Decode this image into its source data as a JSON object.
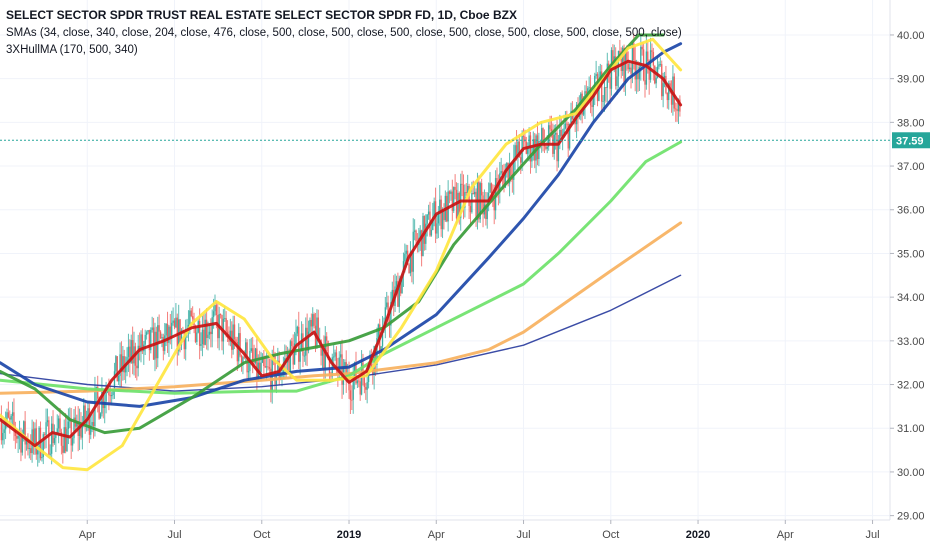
{
  "legend": {
    "title": "SELECT SECTOR SPDR TRUST REAL ESTATE SELECT SECTOR SPDR FD, 1D, Cboe BZX",
    "line1": "SMAs (34, close, 340, close, 204, close, 476, close, 500, close, 500, close, 500, close, 500, close, 500, close, 500, close, 500, close)",
    "line2": "3XHullMA (170, 500, 340)"
  },
  "price_label": {
    "value": "37.59",
    "color": "#26a69a"
  },
  "chart_data": {
    "type": "line",
    "title": "SELECT SECTOR SPDR TRUST REAL ESTATE SELECT SECTOR SPDR FD, 1D, Cboe BZX",
    "xlabel": "",
    "ylabel": "",
    "x_ticks": [
      {
        "label": "Apr",
        "x": 0.25,
        "bold": false
      },
      {
        "label": "Jul",
        "x": 0.5,
        "bold": false
      },
      {
        "label": "Oct",
        "x": 0.75,
        "bold": false
      },
      {
        "label": "2019",
        "x": 1.0,
        "bold": true
      },
      {
        "label": "Apr",
        "x": 1.25,
        "bold": false
      },
      {
        "label": "Jul",
        "x": 1.5,
        "bold": false
      },
      {
        "label": "Oct",
        "x": 1.75,
        "bold": false
      },
      {
        "label": "2020",
        "x": 2.0,
        "bold": true
      },
      {
        "label": "Apr",
        "x": 2.25,
        "bold": false
      },
      {
        "label": "Jul",
        "x": 2.5,
        "bold": false
      }
    ],
    "y_ticks": [
      "29.00",
      "30.00",
      "31.00",
      "32.00",
      "33.00",
      "34.00",
      "35.00",
      "36.00",
      "37.00",
      "38.00",
      "39.00",
      "40.00"
    ],
    "xlim": [
      0.0,
      2.55
    ],
    "ylim": [
      28.9,
      40.8
    ],
    "last_price": 37.59,
    "grid": true,
    "series": [
      {
        "color": "#2a3d9e",
        "width": 1.4,
        "points": [
          [
            0.0,
            32.25
          ],
          [
            0.25,
            32.0
          ],
          [
            0.5,
            31.85
          ],
          [
            0.75,
            31.95
          ],
          [
            1.0,
            32.15
          ],
          [
            1.25,
            32.45
          ],
          [
            1.5,
            32.9
          ],
          [
            1.75,
            33.7
          ],
          [
            1.95,
            34.5
          ]
        ]
      },
      {
        "color": "#f7b15e",
        "width": 3,
        "points": [
          [
            0.0,
            31.8
          ],
          [
            0.25,
            31.85
          ],
          [
            0.5,
            31.95
          ],
          [
            0.75,
            32.1
          ],
          [
            0.9,
            32.2
          ],
          [
            1.0,
            32.25
          ],
          [
            1.25,
            32.5
          ],
          [
            1.4,
            32.8
          ],
          [
            1.5,
            33.2
          ],
          [
            1.75,
            34.6
          ],
          [
            1.95,
            35.7
          ]
        ]
      },
      {
        "color": "#6ee26a",
        "width": 3,
        "points": [
          [
            0.0,
            32.1
          ],
          [
            0.25,
            31.9
          ],
          [
            0.5,
            31.8
          ],
          [
            0.75,
            31.85
          ],
          [
            0.85,
            31.85
          ],
          [
            1.0,
            32.2
          ],
          [
            1.1,
            32.7
          ],
          [
            1.25,
            33.3
          ],
          [
            1.5,
            34.3
          ],
          [
            1.6,
            35.0
          ],
          [
            1.75,
            36.2
          ],
          [
            1.85,
            37.1
          ],
          [
            1.95,
            37.55
          ]
        ]
      },
      {
        "color": "#1c47a8",
        "width": 3,
        "points": [
          [
            0.0,
            32.5
          ],
          [
            0.1,
            32.0
          ],
          [
            0.25,
            31.6
          ],
          [
            0.4,
            31.5
          ],
          [
            0.55,
            31.7
          ],
          [
            0.7,
            32.1
          ],
          [
            0.85,
            32.3
          ],
          [
            1.0,
            32.4
          ],
          [
            1.1,
            32.8
          ],
          [
            1.25,
            33.6
          ],
          [
            1.4,
            34.9
          ],
          [
            1.5,
            35.8
          ],
          [
            1.6,
            36.8
          ],
          [
            1.7,
            38.0
          ],
          [
            1.8,
            39.0
          ],
          [
            1.9,
            39.6
          ],
          [
            1.95,
            39.8
          ]
        ]
      },
      {
        "color": "#3a9c3a",
        "width": 3,
        "points": [
          [
            0.0,
            32.3
          ],
          [
            0.1,
            31.9
          ],
          [
            0.2,
            31.2
          ],
          [
            0.3,
            30.9
          ],
          [
            0.4,
            31.0
          ],
          [
            0.55,
            31.7
          ],
          [
            0.7,
            32.5
          ],
          [
            0.8,
            32.7
          ],
          [
            0.9,
            32.85
          ],
          [
            1.0,
            33.0
          ],
          [
            1.1,
            33.3
          ],
          [
            1.2,
            33.9
          ],
          [
            1.3,
            35.2
          ],
          [
            1.45,
            36.6
          ],
          [
            1.55,
            37.5
          ],
          [
            1.65,
            38.3
          ],
          [
            1.75,
            39.3
          ],
          [
            1.83,
            40.0
          ],
          [
            1.9,
            40.0
          ]
        ]
      },
      {
        "color": "#ffe640",
        "width": 3,
        "points": [
          [
            0.0,
            31.3
          ],
          [
            0.1,
            30.6
          ],
          [
            0.18,
            30.1
          ],
          [
            0.25,
            30.05
          ],
          [
            0.35,
            30.6
          ],
          [
            0.45,
            32.0
          ],
          [
            0.55,
            33.4
          ],
          [
            0.62,
            33.9
          ],
          [
            0.7,
            33.5
          ],
          [
            0.78,
            32.6
          ],
          [
            0.85,
            32.1
          ],
          [
            0.95,
            32.1
          ],
          [
            1.05,
            32.2
          ],
          [
            1.15,
            33.3
          ],
          [
            1.25,
            34.6
          ],
          [
            1.35,
            36.5
          ],
          [
            1.45,
            37.5
          ],
          [
            1.55,
            38.0
          ],
          [
            1.65,
            38.2
          ],
          [
            1.72,
            38.9
          ],
          [
            1.8,
            39.7
          ],
          [
            1.87,
            39.9
          ],
          [
            1.95,
            39.2
          ]
        ]
      },
      {
        "color": "#c81313",
        "width": 3,
        "points": [
          [
            0.0,
            31.2
          ],
          [
            0.05,
            30.9
          ],
          [
            0.1,
            30.6
          ],
          [
            0.15,
            30.9
          ],
          [
            0.2,
            30.8
          ],
          [
            0.25,
            31.2
          ],
          [
            0.32,
            32.1
          ],
          [
            0.4,
            32.8
          ],
          [
            0.47,
            33.0
          ],
          [
            0.55,
            33.3
          ],
          [
            0.62,
            33.4
          ],
          [
            0.7,
            32.7
          ],
          [
            0.75,
            32.2
          ],
          [
            0.8,
            32.3
          ],
          [
            0.85,
            32.9
          ],
          [
            0.9,
            33.2
          ],
          [
            0.95,
            32.5
          ],
          [
            1.0,
            32.05
          ],
          [
            1.05,
            32.3
          ],
          [
            1.1,
            33.3
          ],
          [
            1.17,
            34.9
          ],
          [
            1.25,
            35.9
          ],
          [
            1.32,
            36.2
          ],
          [
            1.4,
            36.2
          ],
          [
            1.45,
            36.9
          ],
          [
            1.5,
            37.4
          ],
          [
            1.55,
            37.5
          ],
          [
            1.6,
            37.5
          ],
          [
            1.65,
            38.1
          ],
          [
            1.7,
            38.6
          ],
          [
            1.75,
            39.2
          ],
          [
            1.8,
            39.4
          ],
          [
            1.85,
            39.3
          ],
          [
            1.9,
            39.0
          ],
          [
            1.95,
            38.4
          ]
        ]
      }
    ]
  }
}
